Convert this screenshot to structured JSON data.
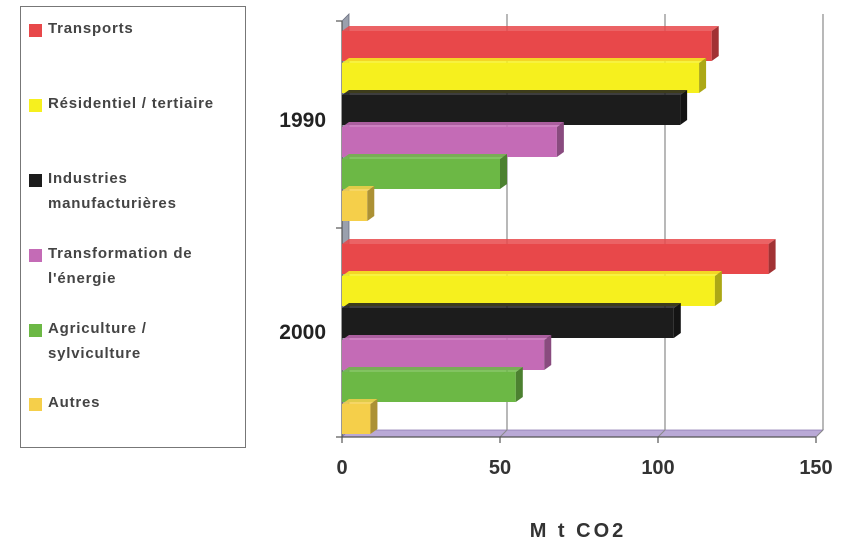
{
  "chart_data": {
    "type": "bar",
    "orientation": "horizontal",
    "categories": [
      "1990",
      "2000"
    ],
    "series": [
      {
        "name": "Transports",
        "color": "#e8484a",
        "values": [
          117,
          135
        ]
      },
      {
        "name": "Résidentiel / tertiaire",
        "color": "#f6f01e",
        "values": [
          113,
          118
        ]
      },
      {
        "name": "Industries manufacturières",
        "color": "#1c1c1c",
        "values": [
          107,
          105
        ]
      },
      {
        "name": "Transformation de l'énergie",
        "color": "#c46bb6",
        "values": [
          68,
          64
        ]
      },
      {
        "name": "Agriculture / sylviculture",
        "color": "#6cb845",
        "values": [
          50,
          55
        ]
      },
      {
        "name": "Autres",
        "color": "#f5cf4a",
        "values": [
          8,
          9
        ]
      }
    ],
    "xlabel": "M t CO2",
    "xlim": [
      0,
      150
    ],
    "xticks": [
      "0",
      "50",
      "100",
      "150"
    ],
    "grid": true,
    "legend_position": "left"
  },
  "legend": {
    "items": [
      {
        "lines": [
          "Transports"
        ],
        "color": "#e8484a"
      },
      {
        "lines": [
          "Résidentiel / tertiaire"
        ],
        "color": "#f6f01e"
      },
      {
        "lines": [
          "Industries",
          "manufacturières"
        ],
        "color": "#1c1c1c"
      },
      {
        "lines": [
          "Transformation de",
          "l'énergie"
        ],
        "color": "#c46bb6"
      },
      {
        "lines": [
          "Agriculture /",
          "sylviculture"
        ],
        "color": "#6cb845"
      },
      {
        "lines": [
          "Autres"
        ],
        "color": "#f5cf4a"
      }
    ]
  }
}
